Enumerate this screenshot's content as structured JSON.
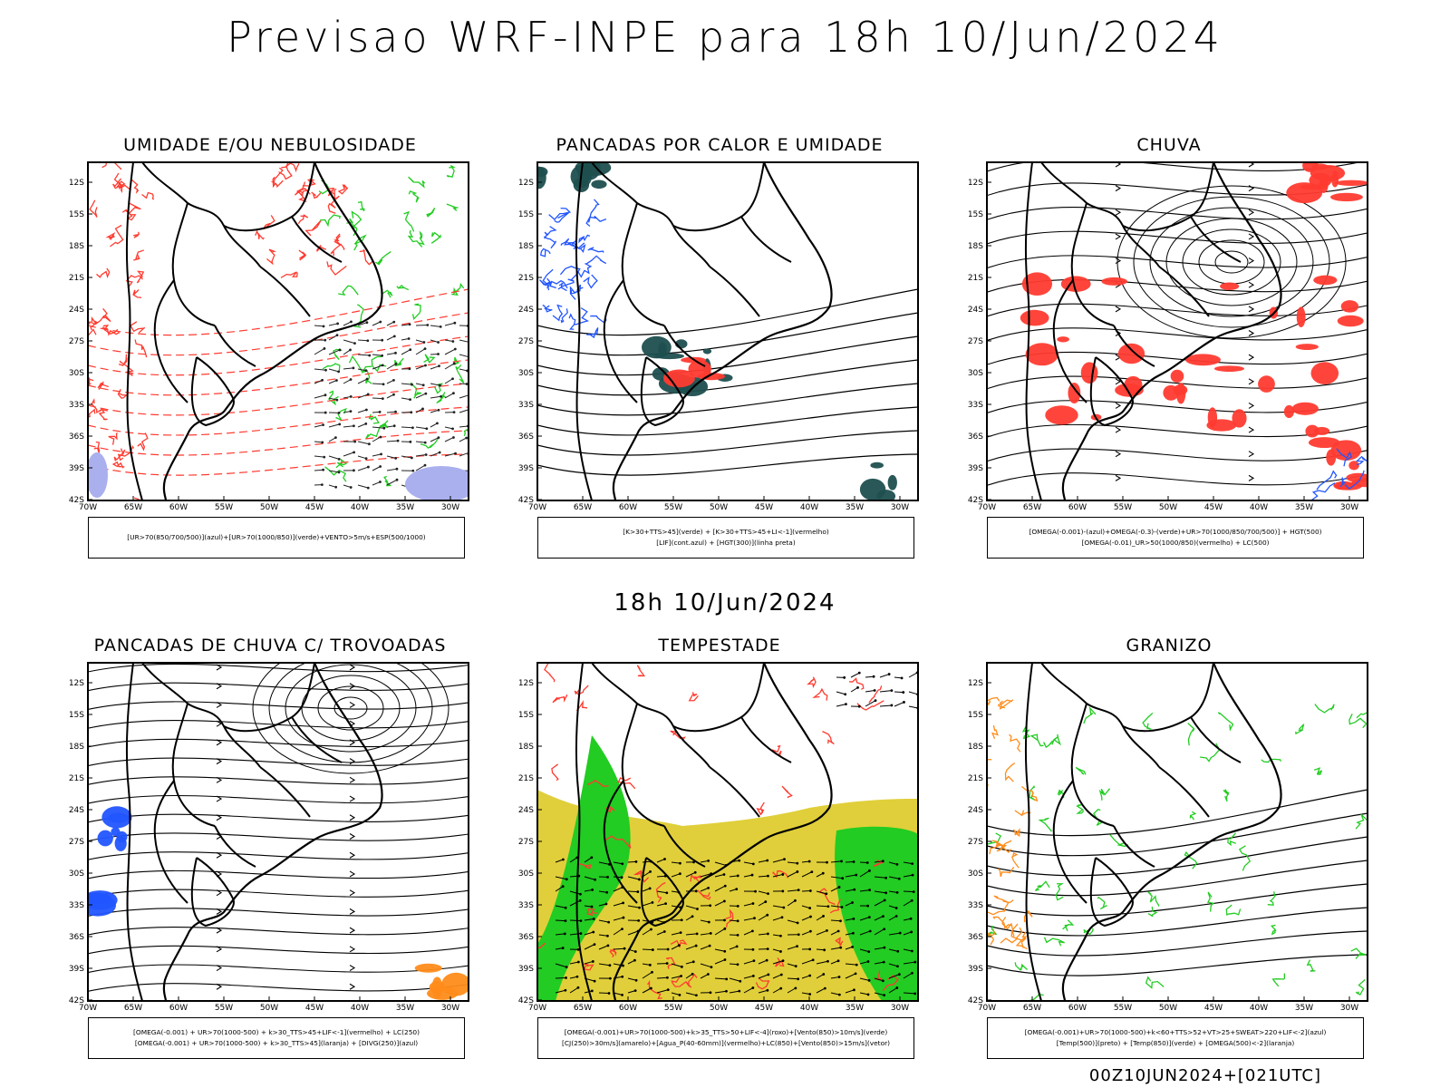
{
  "header": {
    "title": "Previsao WRF-INPE  para 18h 10/Jun/2024"
  },
  "middle_title": "18h 10/Jun/2024",
  "footer_stamp": "00Z10JUN2024+[021UTC]",
  "axes": {
    "lat_labels": [
      "12S",
      "15S",
      "18S",
      "21S",
      "24S",
      "27S",
      "30S",
      "33S",
      "36S",
      "39S",
      "42S"
    ],
    "lon_labels": [
      "70W",
      "65W",
      "60W",
      "55W",
      "50W",
      "45W",
      "40W",
      "35W",
      "30W"
    ]
  },
  "colors": {
    "red": "#ff3b30",
    "green": "#22cc22",
    "blue": "#2255ff",
    "yellow": "#e0cf3a",
    "darkteal": "#1f4f4f",
    "orange": "#ff8c1a",
    "lavender": "#aab0ee"
  },
  "panels": [
    {
      "id": "umidade",
      "title": "UMIDADE E/OU NEBULOSIDADE",
      "legend": [
        "[UR>70(850/700/500)](azul)+[UR>70(1000/850)](verde)+VENTO>5m/s+ESP(500/1000)"
      ]
    },
    {
      "id": "pancadas-calor",
      "title": "PANCADAS POR CALOR E UMIDADE",
      "legend": [
        "[K>30+TTS>45](verde) + [K>30+TTS>45+LI<-1](vermelho)",
        "[LIF](cont.azul) + [HGT(300)](linha preta)"
      ]
    },
    {
      "id": "chuva",
      "title": "CHUVA",
      "legend": [
        "[OMEGA(-0.001)-(azul)+OMEGA(-0.3)-(verde)+UR>70(1000/850/700/500)] + HGT(500)",
        "[OMEGA(-0.01)_UR>50(1000/850)(vermelho) + LC(500)"
      ]
    },
    {
      "id": "pancadas-trovoadas",
      "title": "PANCADAS DE CHUVA C/ TROVOADAS",
      "legend": [
        "[OMEGA(-0.001) + UR>70(1000-500) + k>30_TTS>45+LIF<-1](vermelho) + LC(250)",
        "[OMEGA(-0.001) + UR>70(1000-500) + k>30_TTS>45](laranja) + [DIVG(250)](azul)"
      ]
    },
    {
      "id": "tempestade",
      "title": "TEMPESTADE",
      "legend": [
        "[OMEGA(-0.001)+UR>70(1000-500)+k>35_TTS>50+LIF<-4](roxo)+[Vento(850)>10m/s](verde)",
        "[CJ(250)>30m/s](amarelo)+[Agua_P(40-60mm)](vermelho)+LC(850)+[Vento(850)>15m/s](vetor)"
      ]
    },
    {
      "id": "granizo",
      "title": "GRANIZO",
      "legend": [
        "[OMEGA(-0.001)+UR>70(1000-500)+k<60+TTS>52+VT>25+SWEAT>220+LIF<-2](azul)",
        "[Temp(500)](preto) + [Temp(850)](verde) + [OMEGA(500)<-2](laranja)"
      ]
    }
  ]
}
